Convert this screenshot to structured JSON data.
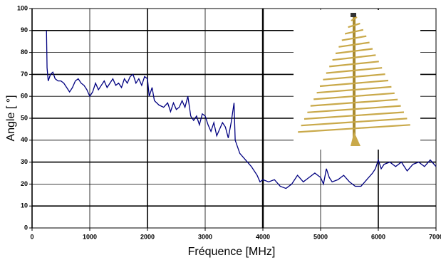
{
  "chart_data": {
    "type": "line",
    "x_label": "Fréquence [MHz]",
    "y_label": "Angle [ °]",
    "x": [
      250,
      260,
      280,
      320,
      360,
      400,
      450,
      500,
      550,
      600,
      650,
      700,
      750,
      800,
      850,
      900,
      950,
      1000,
      1050,
      1100,
      1150,
      1200,
      1250,
      1300,
      1350,
      1400,
      1450,
      1500,
      1550,
      1600,
      1650,
      1700,
      1750,
      1800,
      1850,
      1900,
      1950,
      2000,
      2030,
      2080,
      2120,
      2200,
      2280,
      2350,
      2400,
      2450,
      2500,
      2550,
      2600,
      2650,
      2700,
      2750,
      2800,
      2850,
      2900,
      2950,
      3000,
      3050,
      3100,
      3150,
      3200,
      3250,
      3300,
      3350,
      3400,
      3450,
      3500,
      3520,
      3600,
      3700,
      3800,
      3900,
      3950,
      4000,
      4100,
      4200,
      4300,
      4400,
      4500,
      4600,
      4700,
      4800,
      4900,
      5000,
      5050,
      5100,
      5150,
      5200,
      5300,
      5400,
      5500,
      5600,
      5700,
      5800,
      5900,
      5950,
      6000,
      6050,
      6100,
      6200,
      6300,
      6400,
      6500,
      6600,
      6700,
      6800,
      6900,
      7000
    ],
    "values": [
      90,
      73,
      67,
      70,
      71,
      68,
      67,
      67,
      66,
      64,
      62,
      64,
      67,
      68,
      66,
      65,
      63,
      60,
      62,
      66,
      63,
      65,
      67,
      64,
      66,
      68,
      65,
      66,
      64,
      68,
      66,
      69,
      70,
      66,
      68,
      65,
      69,
      68,
      60,
      64,
      58,
      56,
      55,
      57,
      53,
      57,
      54,
      55,
      58,
      55,
      60,
      51,
      49,
      51,
      47,
      52,
      51,
      47,
      44,
      48,
      42,
      45,
      48,
      46,
      41,
      48,
      57,
      40,
      34,
      31,
      28,
      24,
      21,
      22,
      21,
      22,
      19,
      18,
      20,
      24,
      21,
      23,
      25,
      23,
      20,
      27,
      23,
      21,
      22,
      24,
      21,
      19,
      19,
      22,
      25,
      27,
      31,
      27,
      29,
      30,
      28,
      30,
      26,
      29,
      30,
      28,
      31,
      28
    ],
    "color": "#000080",
    "xlim": [
      0,
      7000
    ],
    "xticks": [
      0,
      1000,
      2000,
      3000,
      4000,
      5000,
      6000,
      7000
    ],
    "ylim": [
      0,
      100
    ],
    "yticks": [
      0,
      10,
      20,
      30,
      40,
      50,
      60,
      70,
      80,
      90,
      100
    ],
    "grid": true
  }
}
